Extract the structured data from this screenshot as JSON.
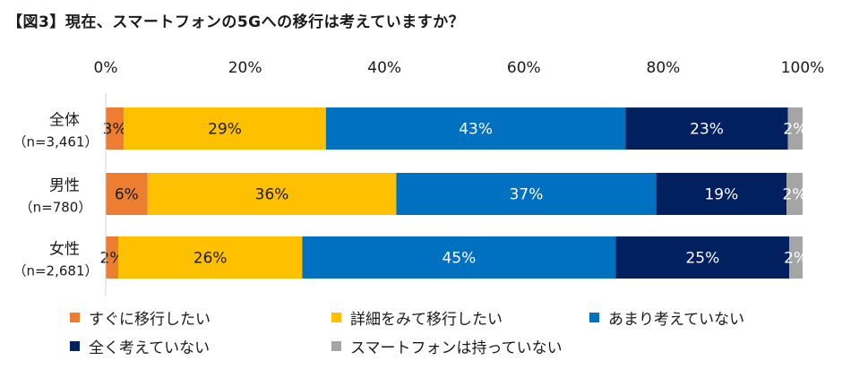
{
  "chart_data": {
    "type": "bar",
    "orientation": "horizontal",
    "stacked": true,
    "percent": true,
    "title": "【図3】現在、スマートフォンの5Gへの移行は考えていますか？",
    "xlim": [
      0,
      100
    ],
    "x_ticks": [
      "0%",
      "20%",
      "40%",
      "60%",
      "80%",
      "100%"
    ],
    "grid": false,
    "legend_position": "bottom",
    "categories": [
      {
        "label": "全体",
        "sublabel": "（n=3,461）"
      },
      {
        "label": "男性",
        "sublabel": "（n=780）"
      },
      {
        "label": "女性",
        "sublabel": "（n=2,681）"
      }
    ],
    "series": [
      {
        "name": "すぐに移行したい",
        "color": "#ed7d31",
        "label_color": "#1a1a1a",
        "values": [
          2.6,
          6.0,
          1.8
        ],
        "labels": [
          "3%",
          "6%",
          "2%"
        ]
      },
      {
        "name": "詳細をみて移行したい",
        "color": "#ffc000",
        "label_color": "#1a1a1a",
        "values": [
          29.0,
          35.7,
          26.4
        ],
        "labels": [
          "29%",
          "36%",
          "26%"
        ]
      },
      {
        "name": "あまり考えていない",
        "color": "#0070c0",
        "label_color": "#ffffff",
        "values": [
          43.0,
          37.3,
          45.0
        ],
        "labels": [
          "43%",
          "37%",
          "45%"
        ]
      },
      {
        "name": "全く考えていない",
        "color": "#002060",
        "label_color": "#ffffff",
        "values": [
          23.3,
          18.7,
          24.9
        ],
        "labels": [
          "23%",
          "19%",
          "25%"
        ]
      },
      {
        "name": "スマートフォンは持っていない",
        "color": "#a5a5a5",
        "label_color": "#ffffff",
        "values": [
          2.1,
          2.3,
          1.9
        ],
        "labels": [
          "2%",
          "2%",
          "2%"
        ]
      }
    ]
  }
}
